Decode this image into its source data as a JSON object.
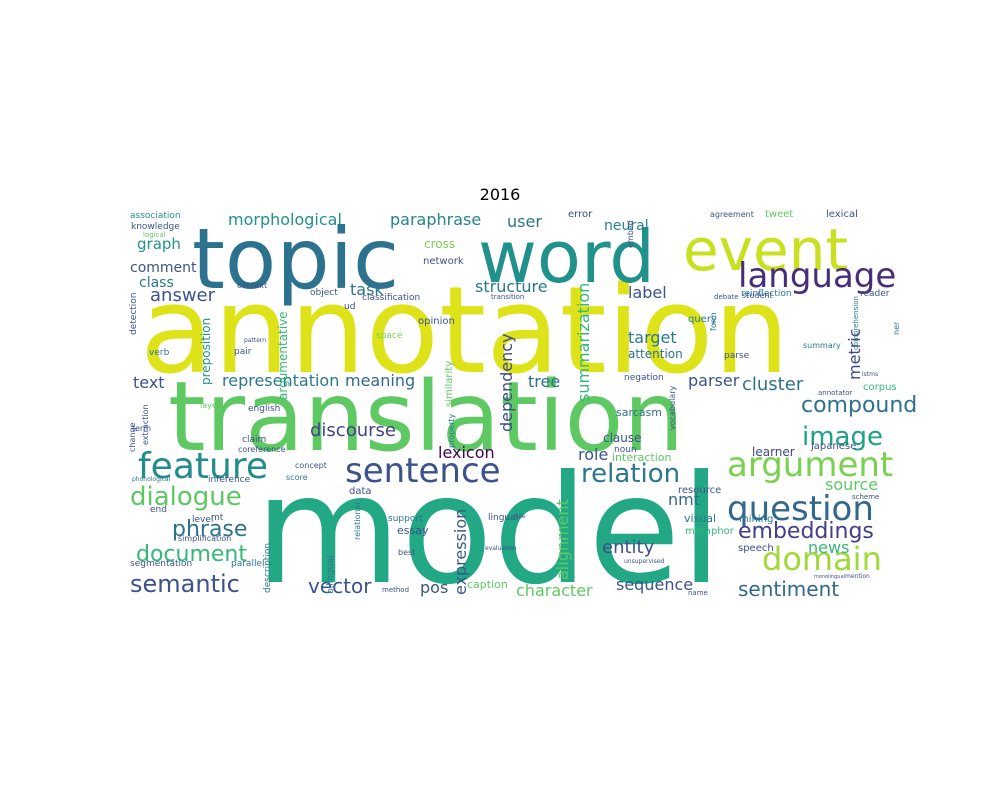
{
  "title": "2016",
  "colors": {
    "background": "#ffffff",
    "palette": "viridis"
  },
  "words": [
    {
      "text": "annotation",
      "color": "#dde318"
    },
    {
      "text": "model",
      "color": "#22a884"
    },
    {
      "text": "translation",
      "color": "#5ec962"
    },
    {
      "text": "topic",
      "color": "#2c728e"
    },
    {
      "text": "word",
      "color": "#21918c"
    },
    {
      "text": "event",
      "color": "#c8e020"
    },
    {
      "text": "feature",
      "color": "#228c8d"
    },
    {
      "text": "sentence",
      "color": "#3b528b"
    },
    {
      "text": "argument",
      "color": "#7ad151"
    },
    {
      "text": "question",
      "color": "#31688e"
    },
    {
      "text": "language",
      "color": "#472d7b"
    },
    {
      "text": "domain",
      "color": "#a0da39"
    },
    {
      "text": "dialogue",
      "color": "#5ec962"
    },
    {
      "text": "image",
      "color": "#1fa187"
    },
    {
      "text": "relation",
      "color": "#2a788e"
    },
    {
      "text": "semantic",
      "color": "#3b528b"
    },
    {
      "text": "document",
      "color": "#35b779"
    },
    {
      "text": "phrase",
      "color": "#2c728e"
    },
    {
      "text": "embeddings",
      "color": "#433e85"
    },
    {
      "text": "compound",
      "color": "#2c728e"
    },
    {
      "text": "sentiment",
      "color": "#31688e"
    },
    {
      "text": "vector",
      "color": "#3b528b"
    },
    {
      "text": "answer",
      "color": "#3b528b"
    },
    {
      "text": "representation",
      "color": "#2a788e"
    },
    {
      "text": "meaning",
      "color": "#31688e"
    },
    {
      "text": "morphological",
      "color": "#21918c"
    },
    {
      "text": "paraphrase",
      "color": "#26828e"
    },
    {
      "text": "discourse",
      "color": "#414487"
    },
    {
      "text": "lexicon",
      "color": "#440154"
    },
    {
      "text": "summarization",
      "color": "#35b779"
    },
    {
      "text": "dependency",
      "color": "#3e4989"
    },
    {
      "text": "alignment",
      "color": "#5ec962"
    },
    {
      "text": "expression",
      "color": "#38588c"
    },
    {
      "text": "entity",
      "color": "#3b528b"
    },
    {
      "text": "structure",
      "color": "#2a788e"
    },
    {
      "text": "cluster",
      "color": "#2c728e"
    },
    {
      "text": "character",
      "color": "#5ec962"
    },
    {
      "text": "sequence",
      "color": "#3b528b"
    },
    {
      "text": "source",
      "color": "#5ec962"
    },
    {
      "text": "news",
      "color": "#35b779"
    },
    {
      "text": "metric",
      "color": "#3e4989"
    },
    {
      "text": "target",
      "color": "#2a788e"
    },
    {
      "text": "label",
      "color": "#3b528b"
    },
    {
      "text": "parser",
      "color": "#3b528b"
    },
    {
      "text": "nmt",
      "color": "#31688e"
    },
    {
      "text": "graph",
      "color": "#21918c"
    },
    {
      "text": "user",
      "color": "#2c728e"
    },
    {
      "text": "text",
      "color": "#3b528b"
    },
    {
      "text": "task",
      "color": "#2c728e"
    },
    {
      "text": "tree",
      "color": "#2c728e"
    },
    {
      "text": "pos",
      "color": "#3b528b"
    },
    {
      "text": "role",
      "color": "#3b528b"
    },
    {
      "text": "comment",
      "color": "#3b528b"
    },
    {
      "text": "class",
      "color": "#2a788e"
    },
    {
      "text": "neural",
      "color": "#26828e"
    },
    {
      "text": "attention",
      "color": "#2c728e"
    },
    {
      "text": "argumentative",
      "color": "#35b779"
    },
    {
      "text": "preposition",
      "color": "#21918c"
    },
    {
      "text": "similarity",
      "color": "#5ec962"
    },
    {
      "text": "data",
      "color": "#3b528b"
    },
    {
      "text": "essay",
      "color": "#3b528b"
    },
    {
      "text": "caption",
      "color": "#5ec962"
    },
    {
      "text": "query",
      "color": "#2a788e"
    },
    {
      "text": "sarcasm",
      "color": "#2c728e"
    },
    {
      "text": "clause",
      "color": "#3b528b"
    },
    {
      "text": "interaction",
      "color": "#5ec962"
    },
    {
      "text": "resource",
      "color": "#3b528b"
    },
    {
      "text": "visual",
      "color": "#2a788e"
    },
    {
      "text": "metaphor",
      "color": "#35b779"
    },
    {
      "text": "mining",
      "color": "#2a788e"
    },
    {
      "text": "learner",
      "color": "#414487"
    },
    {
      "text": "speech",
      "color": "#3b528b"
    },
    {
      "text": "summary",
      "color": "#2a788e"
    },
    {
      "text": "lexical",
      "color": "#3b528b"
    },
    {
      "text": "tweet",
      "color": "#5ec962"
    },
    {
      "text": "agreement",
      "color": "#3b528b"
    },
    {
      "text": "reinflection",
      "color": "#2a788e"
    },
    {
      "text": "reader",
      "color": "#3b528b"
    },
    {
      "text": "japanese",
      "color": "#3b528b"
    },
    {
      "text": "corpus",
      "color": "#35b779"
    },
    {
      "text": "network",
      "color": "#3b528b"
    },
    {
      "text": "opinion",
      "color": "#3b528b"
    },
    {
      "text": "classification",
      "color": "#3b528b"
    },
    {
      "text": "cross",
      "color": "#7ad151"
    },
    {
      "text": "error",
      "color": "#3b528b"
    },
    {
      "text": "object",
      "color": "#3b528b"
    },
    {
      "text": "context",
      "color": "#3b528b"
    },
    {
      "text": "association",
      "color": "#21918c"
    },
    {
      "text": "knowledge",
      "color": "#3b528b"
    },
    {
      "text": "logical",
      "color": "#5ec962"
    },
    {
      "text": "detection",
      "color": "#3b528b"
    },
    {
      "text": "verb",
      "color": "#2a788e"
    },
    {
      "text": "pair",
      "color": "#3b528b"
    },
    {
      "text": "pattern",
      "color": "#3b528b"
    },
    {
      "text": "space",
      "color": "#7ad151"
    },
    {
      "text": "english",
      "color": "#3b528b"
    },
    {
      "text": "claim",
      "color": "#3b528b"
    },
    {
      "text": "coreference",
      "color": "#3b528b"
    },
    {
      "text": "inference",
      "color": "#3b528b"
    },
    {
      "text": "concept",
      "color": "#3b528b"
    },
    {
      "text": "score",
      "color": "#2a788e"
    },
    {
      "text": "level",
      "color": "#3b528b"
    },
    {
      "text": "mt",
      "color": "#3b528b"
    },
    {
      "text": "end",
      "color": "#3b528b"
    },
    {
      "text": "term",
      "color": "#3b528b"
    },
    {
      "text": "change",
      "color": "#3b528b"
    },
    {
      "text": "extraction",
      "color": "#3b528b"
    },
    {
      "text": "layer",
      "color": "#5ec962"
    },
    {
      "text": "simplification",
      "color": "#3b528b"
    },
    {
      "text": "segmentation",
      "color": "#3b528b"
    },
    {
      "text": "parallel",
      "color": "#2a788e"
    },
    {
      "text": "description",
      "color": "#2a788e"
    },
    {
      "text": "bilingual",
      "color": "#2a788e"
    },
    {
      "text": "lingual",
      "color": "#3b528b"
    },
    {
      "text": "best",
      "color": "#3b528b"
    },
    {
      "text": "support",
      "color": "#2a788e"
    },
    {
      "text": "method",
      "color": "#3b528b"
    },
    {
      "text": "noun",
      "color": "#3b528b"
    },
    {
      "text": "negation",
      "color": "#3b528b"
    },
    {
      "text": "parse",
      "color": "#3b528b"
    },
    {
      "text": "form",
      "color": "#2a788e"
    },
    {
      "text": "embed",
      "color": "#3b528b"
    },
    {
      "text": "transition",
      "color": "#3b528b"
    },
    {
      "text": "student",
      "color": "#3b528b"
    },
    {
      "text": "debate",
      "color": "#3b528b"
    },
    {
      "text": "ner",
      "color": "#2a788e"
    },
    {
      "text": "comprehension",
      "color": "#2a788e"
    },
    {
      "text": "annotator",
      "color": "#3b528b"
    },
    {
      "text": "vocabulary",
      "color": "#3b528b"
    },
    {
      "text": "name",
      "color": "#3b528b"
    },
    {
      "text": "scheme",
      "color": "#3b528b"
    },
    {
      "text": "evaluation",
      "color": "#3b528b"
    },
    {
      "text": "rule",
      "color": "#3b528b"
    },
    {
      "text": "property",
      "color": "#2a788e"
    },
    {
      "text": "ud",
      "color": "#3b528b"
    },
    {
      "text": "relational",
      "color": "#2a788e"
    },
    {
      "text": "phonological",
      "color": "#2a788e"
    },
    {
      "text": "mention",
      "color": "#3b528b"
    },
    {
      "text": "unsupervised",
      "color": "#3b528b"
    },
    {
      "text": "monolingual",
      "color": "#3b528b"
    },
    {
      "text": "lstms",
      "color": "#3b528b"
    }
  ]
}
